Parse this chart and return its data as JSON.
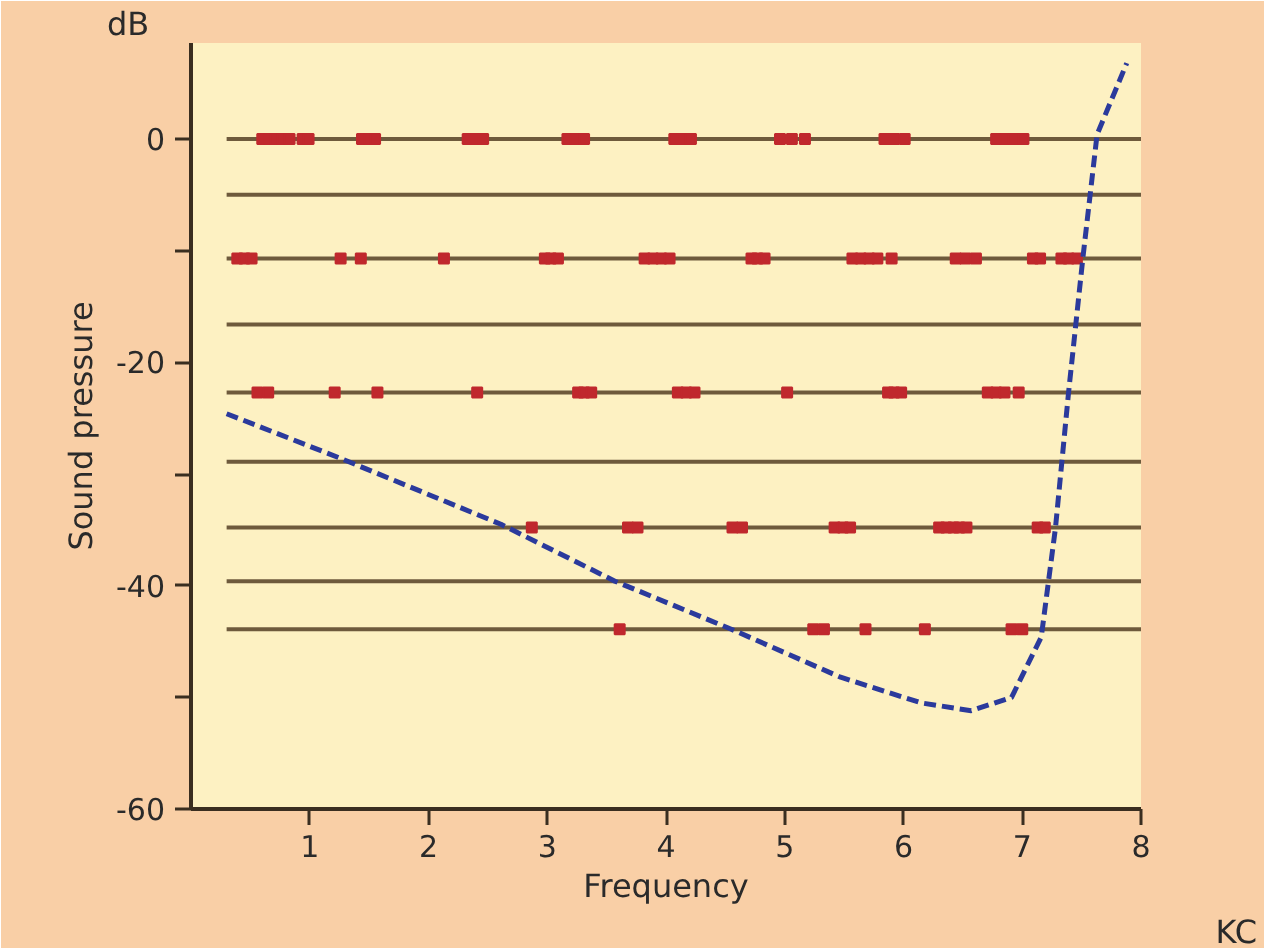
{
  "chart_data": {
    "type": "line",
    "xlabel": "Frequency",
    "ylabel": "Sound pressure",
    "annotations": [
      "dB",
      "KC"
    ],
    "xlim": [
      0,
      8
    ],
    "ylim": [
      -60,
      8.6
    ],
    "xticks": [
      1,
      2,
      3,
      4,
      5,
      6,
      7,
      8
    ],
    "yticks": [
      0,
      {
        "value": -10,
        "label": null
      },
      -20,
      {
        "value": -30,
        "label": null
      },
      -40,
      {
        "value": -50,
        "label": null
      },
      -60
    ],
    "grid": false,
    "marker": "none",
    "series": [
      {
        "color": "#6e5a3c",
        "line_style": "solid",
        "x": [
          0.3,
          8
        ],
        "values": [
          0,
          0
        ]
      },
      {
        "color": "#6e5a3c",
        "line_style": "solid",
        "x": [
          0.3,
          8
        ],
        "values": [
          -5,
          -5
        ]
      },
      {
        "color": "#6e5a3c",
        "line_style": "solid",
        "x": [
          0.3,
          8
        ],
        "values": [
          -10.7,
          -10.7
        ]
      },
      {
        "color": "#6e5a3c",
        "line_style": "solid",
        "x": [
          0.3,
          8
        ],
        "values": [
          -16.6,
          -16.6
        ]
      },
      {
        "color": "#6e5a3c",
        "line_style": "solid",
        "x": [
          0.3,
          8
        ],
        "values": [
          -22.7,
          -22.7
        ]
      },
      {
        "color": "#6e5a3c",
        "line_style": "solid",
        "x": [
          0.3,
          8
        ],
        "values": [
          -28.9,
          -28.9
        ]
      },
      {
        "color": "#6e5a3c",
        "line_style": "solid",
        "x": [
          0.3,
          8
        ],
        "values": [
          -34.8,
          -34.8
        ]
      },
      {
        "color": "#6e5a3c",
        "line_style": "solid",
        "x": [
          0.3,
          8
        ],
        "values": [
          -39.6,
          -39.6
        ]
      },
      {
        "color": "#6e5a3c",
        "line_style": "solid",
        "x": [
          0.3,
          8
        ],
        "values": [
          -43.9,
          -43.9
        ]
      },
      {
        "type": "scatter",
        "color": "#c0282d",
        "marker": "square",
        "x": [
          0.6,
          0.66,
          0.71,
          0.77,
          0.83,
          0.94,
          0.99,
          1.44,
          1.5,
          1.55,
          2.33,
          2.4,
          2.46,
          3.17,
          3.24,
          3.31,
          4.07,
          4.14,
          4.21,
          4.96,
          5.06,
          5.17,
          5.84,
          5.92,
          6.01,
          6.78,
          6.86,
          6.93,
          7.01,
          0.39,
          0.45,
          0.51,
          1.26,
          1.43,
          2.13,
          2.98,
          3.03,
          3.09,
          3.82,
          3.89,
          3.96,
          4.03,
          4.72,
          4.77,
          4.83,
          5.57,
          5.64,
          5.71,
          5.78,
          5.9,
          6.44,
          6.52,
          6.61,
          7.09,
          7.15,
          7.33,
          7.39,
          7.46,
          0.56,
          0.65,
          1.21,
          1.57,
          2.41,
          3.26,
          3.31,
          3.37,
          4.1,
          4.17,
          4.24,
          5.02,
          5.87,
          5.92,
          5.98,
          6.71,
          6.78,
          6.85,
          6.97,
          2.87,
          3.68,
          3.76,
          4.56,
          4.64,
          5.42,
          5.49,
          5.55,
          6.3,
          6.36,
          6.42,
          6.47,
          6.53,
          7.13,
          7.19,
          3.61,
          5.24,
          5.33,
          5.68,
          6.18,
          6.91,
          7.0
        ],
        "values": [
          0,
          0,
          0,
          0,
          0,
          0,
          0,
          0,
          0,
          0,
          0,
          0,
          0,
          0,
          0,
          0,
          0,
          0,
          0,
          0,
          0,
          0,
          0,
          0,
          0,
          0,
          0,
          0,
          0,
          -10.7,
          -10.7,
          -10.7,
          -10.7,
          -10.7,
          -10.7,
          -10.7,
          -10.7,
          -10.7,
          -10.7,
          -10.7,
          -10.7,
          -10.7,
          -10.7,
          -10.7,
          -10.7,
          -10.7,
          -10.7,
          -10.7,
          -10.7,
          -10.7,
          -10.7,
          -10.7,
          -10.7,
          -10.7,
          -10.7,
          -10.7,
          -10.7,
          -10.7,
          -22.7,
          -22.7,
          -22.7,
          -22.7,
          -22.7,
          -22.7,
          -22.7,
          -22.7,
          -22.7,
          -22.7,
          -22.7,
          -22.7,
          -22.7,
          -22.7,
          -22.7,
          -22.7,
          -22.7,
          -22.7,
          -22.7,
          -34.8,
          -34.8,
          -34.8,
          -34.8,
          -34.8,
          -34.8,
          -34.8,
          -34.8,
          -34.8,
          -34.8,
          -34.8,
          -34.8,
          -34.8,
          -34.8,
          -34.8,
          -43.9,
          -43.9,
          -43.9,
          -43.9,
          -43.9,
          -43.9,
          -43.9
        ]
      },
      {
        "color": "#2b3a9c",
        "line_style": "dashed",
        "x": [
          0.3,
          1.26,
          2.61,
          3.57,
          4.55,
          5.47,
          6.15,
          6.57,
          6.91,
          7.16,
          7.28,
          7.39,
          7.51,
          7.63,
          7.88
        ],
        "values": [
          -24.6,
          -28.6,
          -34.5,
          -39.6,
          -43.9,
          -48.2,
          -50.5,
          -51.2,
          -50.0,
          -44.6,
          -34.8,
          -22.7,
          -10.7,
          0.4,
          6.8
        ]
      }
    ]
  }
}
